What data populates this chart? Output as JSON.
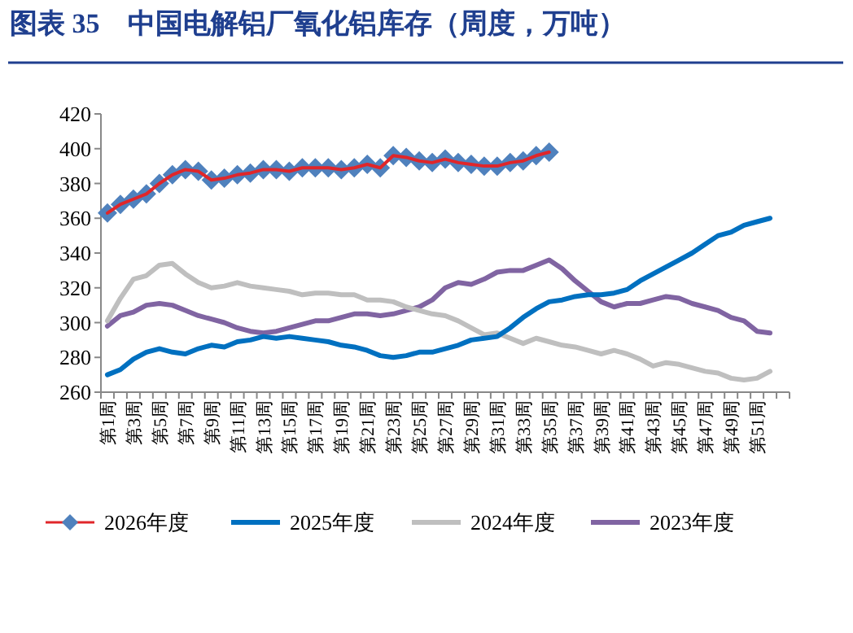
{
  "chart_data": {
    "type": "line",
    "title": "图表 35　中国电解铝厂氧化铝库存（周度，万吨）",
    "categories": [
      "第1周",
      null,
      "第3周",
      null,
      "第5周",
      null,
      "第7周",
      null,
      "第9周",
      null,
      "第11周",
      null,
      "第13周",
      null,
      "第15周",
      null,
      "第17周",
      null,
      "第19周",
      null,
      "第21周",
      null,
      "第23周",
      null,
      "第25周",
      null,
      "第27周",
      null,
      "第29周",
      null,
      "第31周",
      null,
      "第33周",
      null,
      "第35周",
      null,
      "第37周",
      null,
      "第39周",
      null,
      "第41周",
      null,
      "第43周",
      null,
      "第45周",
      null,
      "第47周",
      null,
      "第49周",
      null,
      "第51周",
      null,
      null
    ],
    "series": [
      {
        "name": "2026年度",
        "color": "#4f81bd",
        "marker": "diamond",
        "values": [
          363,
          368,
          371,
          374,
          380,
          385,
          388,
          387,
          382,
          383,
          385,
          386,
          388,
          388,
          387,
          389,
          389,
          389,
          388,
          389,
          391,
          389,
          396,
          395,
          393,
          392,
          394,
          392,
          391,
          390,
          390,
          392,
          393,
          396,
          398,
          null,
          null,
          null,
          null,
          null,
          null,
          null,
          null,
          null,
          null,
          null,
          null,
          null,
          null,
          null,
          null,
          null,
          null
        ]
      },
      {
        "name": "2025年度",
        "color": "#0070c0",
        "marker": "none",
        "values": [
          270,
          273,
          279,
          283,
          285,
          283,
          282,
          285,
          287,
          286,
          289,
          290,
          292,
          291,
          292,
          291,
          290,
          289,
          287,
          286,
          284,
          281,
          280,
          281,
          283,
          283,
          285,
          287,
          290,
          291,
          292,
          297,
          303,
          308,
          312,
          313,
          315,
          316,
          316,
          317,
          319,
          324,
          328,
          332,
          336,
          340,
          345,
          350,
          352,
          356,
          358,
          360,
          null
        ]
      },
      {
        "name": "2024年度",
        "color": "#bfbfbf",
        "marker": "none",
        "values": [
          301,
          314,
          325,
          327,
          333,
          334,
          328,
          323,
          320,
          321,
          323,
          321,
          320,
          319,
          318,
          316,
          317,
          317,
          316,
          316,
          313,
          313,
          312,
          309,
          307,
          305,
          304,
          301,
          297,
          293,
          294,
          291,
          288,
          291,
          289,
          287,
          286,
          284,
          282,
          284,
          282,
          279,
          275,
          277,
          276,
          274,
          272,
          271,
          268,
          267,
          268,
          272,
          null
        ]
      },
      {
        "name": "2023年度",
        "color": "#8064a2",
        "marker": "none",
        "values": [
          298,
          304,
          306,
          310,
          311,
          310,
          307,
          304,
          302,
          300,
          297,
          295,
          294,
          295,
          297,
          299,
          301,
          301,
          303,
          305,
          305,
          304,
          305,
          307,
          309,
          313,
          320,
          323,
          322,
          325,
          329,
          330,
          330,
          333,
          336,
          331,
          324,
          318,
          312,
          309,
          311,
          311,
          313,
          315,
          314,
          311,
          309,
          307,
          303,
          301,
          295,
          294,
          null
        ]
      }
    ],
    "ylim": [
      260,
      420
    ],
    "yticks": [
      260,
      280,
      300,
      320,
      340,
      360,
      380,
      400,
      420
    ],
    "grid": false,
    "legend": "bottom",
    "line_style": "solid"
  }
}
